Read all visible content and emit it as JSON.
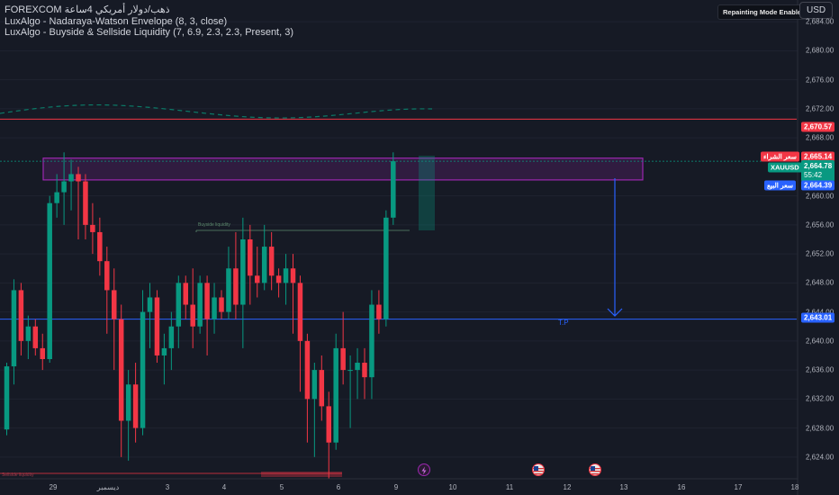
{
  "legend": {
    "symbol_line": "FOREXCOM ذهب/دولار أمريكي 4ساعة",
    "line2": "LuxAlgo - Nadaraya-Watson Envelope (8, 3, close)",
    "line3": "LuxAlgo - Buyside & Sellside Liquidity (7, 6.9, 2.3, 2.3, Present, 3)"
  },
  "badge": "Repainting Mode Enabled",
  "currency": "USD",
  "y_ticks": [
    "2,684.00",
    "2,680.00",
    "2,676.00",
    "2,672.00",
    "2,668.00",
    "2,660.00",
    "2,656.00",
    "2,652.00",
    "2,648.00",
    "2,644.00",
    "2,640.00",
    "2,636.00",
    "2,632.00",
    "2,628.00",
    "2,624.00"
  ],
  "x_ticks": [
    "29",
    "ديسمبر",
    "3",
    "4",
    "5",
    "6",
    "9",
    "10",
    "11",
    "12",
    "13",
    "16",
    "17",
    "18"
  ],
  "price_labels": {
    "resistance": "2,670.57",
    "ask_value": "2,665.14",
    "ask_label": "سعر الشراء",
    "last_symbol": "XAUUSD",
    "last_value": "2,664.78",
    "countdown": "55:42",
    "bid_value": "2,664.39",
    "bid_label": "سعر البيع",
    "target": "2,643.01"
  },
  "annotations": {
    "tp": "T.P",
    "buyside": "Buyside liquidity",
    "sellside": "Sellside liquidity"
  },
  "colors": {
    "background": "#161a25",
    "up": "#089981",
    "down": "#f23645",
    "zone": "#9c27b0",
    "target": "#2962ff",
    "resistance": "#f23645"
  },
  "chart_data": {
    "type": "candlestick",
    "symbol": "XAUUSD",
    "ylim": [
      2621,
      2687
    ],
    "horizontal_levels": {
      "resistance": 2670.57,
      "target": 2643.01
    },
    "supply_zone": [
      2662.2,
      2665.2
    ],
    "candles": [
      [
        2627.8,
        2637,
        2627,
        2636.5
      ],
      [
        2636.5,
        2648.5,
        2634,
        2647
      ],
      [
        2647,
        2648,
        2638,
        2640
      ],
      [
        2640,
        2643.5,
        2637.5,
        2642
      ],
      [
        2642,
        2643,
        2638,
        2639
      ],
      [
        2639,
        2641,
        2636,
        2637.5
      ],
      [
        2637.5,
        2660,
        2637,
        2659
      ],
      [
        2659,
        2663,
        2657,
        2660.5
      ],
      [
        2660.5,
        2666,
        2656,
        2662
      ],
      [
        2662,
        2665,
        2658,
        2663
      ],
      [
        2663,
        2664,
        2654,
        2662
      ],
      [
        2662,
        2663,
        2654,
        2656
      ],
      [
        2656,
        2659,
        2652,
        2655
      ],
      [
        2655,
        2657,
        2649,
        2651
      ],
      [
        2651,
        2653,
        2641,
        2647
      ],
      [
        2647,
        2650,
        2636,
        2643
      ],
      [
        2643,
        2645,
        2624,
        2629
      ],
      [
        2629,
        2636,
        2623.5,
        2634
      ],
      [
        2634,
        2637,
        2626,
        2628
      ],
      [
        2628,
        2647,
        2627,
        2644
      ],
      [
        2644,
        2648,
        2639,
        2646
      ],
      [
        2646,
        2647,
        2637,
        2638
      ],
      [
        2638,
        2641,
        2634,
        2639
      ],
      [
        2639,
        2644,
        2636,
        2642
      ],
      [
        2642,
        2649,
        2639,
        2648
      ],
      [
        2648,
        2649,
        2643,
        2645
      ],
      [
        2645,
        2650,
        2639,
        2642
      ],
      [
        2642,
        2649,
        2641,
        2648
      ],
      [
        2648,
        2649,
        2638,
        2643
      ],
      [
        2643,
        2648,
        2641,
        2646
      ],
      [
        2646,
        2647,
        2643,
        2644
      ],
      [
        2644,
        2653,
        2643,
        2650
      ],
      [
        2650,
        2655,
        2643,
        2645
      ],
      [
        2645,
        2657,
        2639,
        2654
      ],
      [
        2654,
        2656,
        2645,
        2649
      ],
      [
        2649,
        2653,
        2646,
        2648
      ],
      [
        2648,
        2656,
        2647,
        2653
      ],
      [
        2653,
        2655,
        2647,
        2649
      ],
      [
        2649,
        2650,
        2646,
        2648
      ],
      [
        2648,
        2652,
        2645,
        2650
      ],
      [
        2650,
        2652,
        2641,
        2648
      ],
      [
        2648,
        2649,
        2633,
        2640
      ],
      [
        2640,
        2641,
        2626,
        2632
      ],
      [
        2632,
        2637,
        2624,
        2636
      ],
      [
        2636,
        2638,
        2629,
        2631
      ],
      [
        2631,
        2633,
        2621,
        2626
      ],
      [
        2626,
        2641,
        2625,
        2639
      ],
      [
        2639,
        2644,
        2634,
        2636
      ],
      [
        2636,
        2638,
        2628,
        2636
      ],
      [
        2636,
        2639,
        2632,
        2637
      ],
      [
        2637,
        2639,
        2632,
        2635
      ],
      [
        2635,
        2647,
        2632,
        2645
      ],
      [
        2645,
        2647,
        2641,
        2643
      ],
      [
        2643,
        2658,
        2642,
        2657
      ],
      [
        2657,
        2666,
        2656,
        2664.78
      ]
    ]
  }
}
